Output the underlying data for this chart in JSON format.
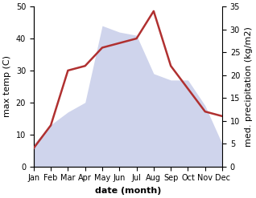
{
  "months": [
    "Jan",
    "Feb",
    "Mar",
    "Apr",
    "May",
    "Jun",
    "Jul",
    "Aug",
    "Sep",
    "Oct",
    "Nov",
    "Dec"
  ],
  "max_temp": [
    7,
    13,
    17,
    20,
    44,
    42,
    41,
    29,
    27,
    27,
    19,
    7
  ],
  "precipitation": [
    4,
    9,
    21,
    22,
    26,
    27,
    28,
    34,
    22,
    17,
    12,
    11
  ],
  "fill_color": "#b0b8e0",
  "fill_alpha": 0.6,
  "precip_color": "#b03030",
  "precip_linewidth": 1.8,
  "ylabel_left": "max temp (C)",
  "ylabel_right": "med. precipitation (kg/m2)",
  "xlabel": "date (month)",
  "ylim_left": [
    0,
    50
  ],
  "ylim_right": [
    0,
    35
  ],
  "yticks_left": [
    0,
    10,
    20,
    30,
    40,
    50
  ],
  "yticks_right": [
    0,
    5,
    10,
    15,
    20,
    25,
    30,
    35
  ],
  "bg_color": "#ffffff",
  "label_fontsize": 8,
  "tick_fontsize": 7,
  "xlabel_fontsize": 8,
  "xlabel_fontweight": "bold"
}
